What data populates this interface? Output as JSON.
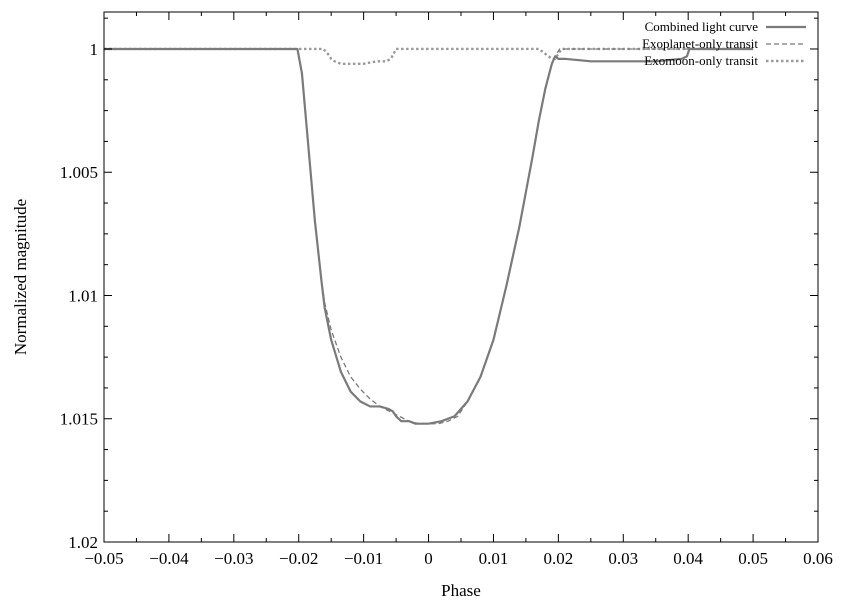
{
  "chart_data": {
    "type": "line",
    "title": "",
    "xlabel": "Phase",
    "ylabel": "Normalized magnitude",
    "xlim": [
      -0.05,
      0.06
    ],
    "ylim": [
      0.9985,
      1.02
    ],
    "y_inverted": true,
    "grid": false,
    "legend_position": "top-right",
    "x_ticks": [
      {
        "value": -0.05,
        "label": "−0.05"
      },
      {
        "value": -0.04,
        "label": "−0.04"
      },
      {
        "value": -0.03,
        "label": "−0.03"
      },
      {
        "value": -0.02,
        "label": "−0.02"
      },
      {
        "value": -0.01,
        "label": "−0.01"
      },
      {
        "value": 0,
        "label": "0"
      },
      {
        "value": 0.01,
        "label": "0.01"
      },
      {
        "value": 0.02,
        "label": "0.02"
      },
      {
        "value": 0.03,
        "label": "0.03"
      },
      {
        "value": 0.04,
        "label": "0.04"
      },
      {
        "value": 0.05,
        "label": "0.05"
      },
      {
        "value": 0.06,
        "label": "0.06"
      }
    ],
    "y_ticks": [
      {
        "value": 1,
        "label": "1"
      },
      {
        "value": 1.005,
        "label": "1.005"
      },
      {
        "value": 1.01,
        "label": "1.01"
      },
      {
        "value": 1.015,
        "label": "1.015"
      },
      {
        "value": 1.02,
        "label": "1.02"
      }
    ],
    "series": [
      {
        "name": "Combined light curve",
        "color": "#7a7a7a",
        "style": "solid",
        "x": [
          -0.05,
          -0.0202,
          -0.0195,
          -0.0185,
          -0.0175,
          -0.0165,
          -0.016,
          -0.015,
          -0.0135,
          -0.012,
          -0.0105,
          -0.009,
          -0.0075,
          -0.0062,
          -0.0055,
          -0.005,
          -0.0042,
          -0.003,
          -0.002,
          0,
          0.002,
          0.004,
          0.006,
          0.008,
          0.01,
          0.012,
          0.014,
          0.016,
          0.017,
          0.018,
          0.019,
          0.0195,
          0.02,
          0.021,
          0.025,
          0.03,
          0.035,
          0.039,
          0.0398,
          0.0402,
          0.05
        ],
        "y": [
          1,
          1,
          1.001,
          1.004,
          1.007,
          1.0094,
          1.0105,
          1.0118,
          1.0131,
          1.0139,
          1.0143,
          1.0145,
          1.0145,
          1.0146,
          1.0147,
          1.0149,
          1.0151,
          1.0151,
          1.0152,
          1.0152,
          1.0151,
          1.0149,
          1.0143,
          1.0133,
          1.0118,
          1.0096,
          1.0072,
          1.0044,
          1.0029,
          1.0016,
          1.0006,
          1.0003,
          1.0004,
          1.0004,
          1.0005,
          1.0005,
          1.0005,
          1.0004,
          1.0003,
          1,
          1
        ]
      },
      {
        "name": "Exoplanet-only transit",
        "color": "#7a7a7a",
        "style": "dashed",
        "x": [
          -0.05,
          -0.0202,
          -0.0195,
          -0.0185,
          -0.0175,
          -0.0165,
          -0.016,
          -0.015,
          -0.0135,
          -0.012,
          -0.0105,
          -0.009,
          -0.0075,
          -0.006,
          -0.0045,
          -0.003,
          -0.0015,
          0,
          0.0015,
          0.003,
          0.0045,
          0.006,
          0.008,
          0.01,
          0.012,
          0.014,
          0.016,
          0.017,
          0.018,
          0.019,
          0.0195,
          0.0202,
          0.05
        ],
        "y": [
          1,
          1,
          1.001,
          1.004,
          1.007,
          1.0094,
          1.0103,
          1.0114,
          1.0125,
          1.0133,
          1.0138,
          1.0142,
          1.0145,
          1.0147,
          1.0149,
          1.0151,
          1.0152,
          1.0152,
          1.0152,
          1.0151,
          1.0149,
          1.0143,
          1.0133,
          1.0118,
          1.0096,
          1.0072,
          1.0044,
          1.0029,
          1.0016,
          1.0006,
          1.0003,
          1,
          1
        ]
      },
      {
        "name": "Exomoon-only transit",
        "color": "#9a9a9a",
        "style": "dotted",
        "x": [
          -0.05,
          -0.0162,
          -0.0155,
          -0.015,
          -0.0145,
          -0.0135,
          -0.012,
          -0.01,
          -0.008,
          -0.0065,
          -0.0058,
          -0.0054,
          -0.005,
          0.017,
          0.0175,
          0.018,
          0.0185,
          0.019,
          0.0195,
          0.0205,
          0.05
        ],
        "y": [
          1,
          1,
          1.0002,
          1.0004,
          1.0005,
          1.0006,
          1.0006,
          1.0006,
          1.0005,
          1.0005,
          1.0004,
          1.0002,
          1,
          1,
          1.0001,
          1.0002,
          1.0003,
          1.0004,
          1.0004,
          1,
          1
        ]
      }
    ]
  }
}
